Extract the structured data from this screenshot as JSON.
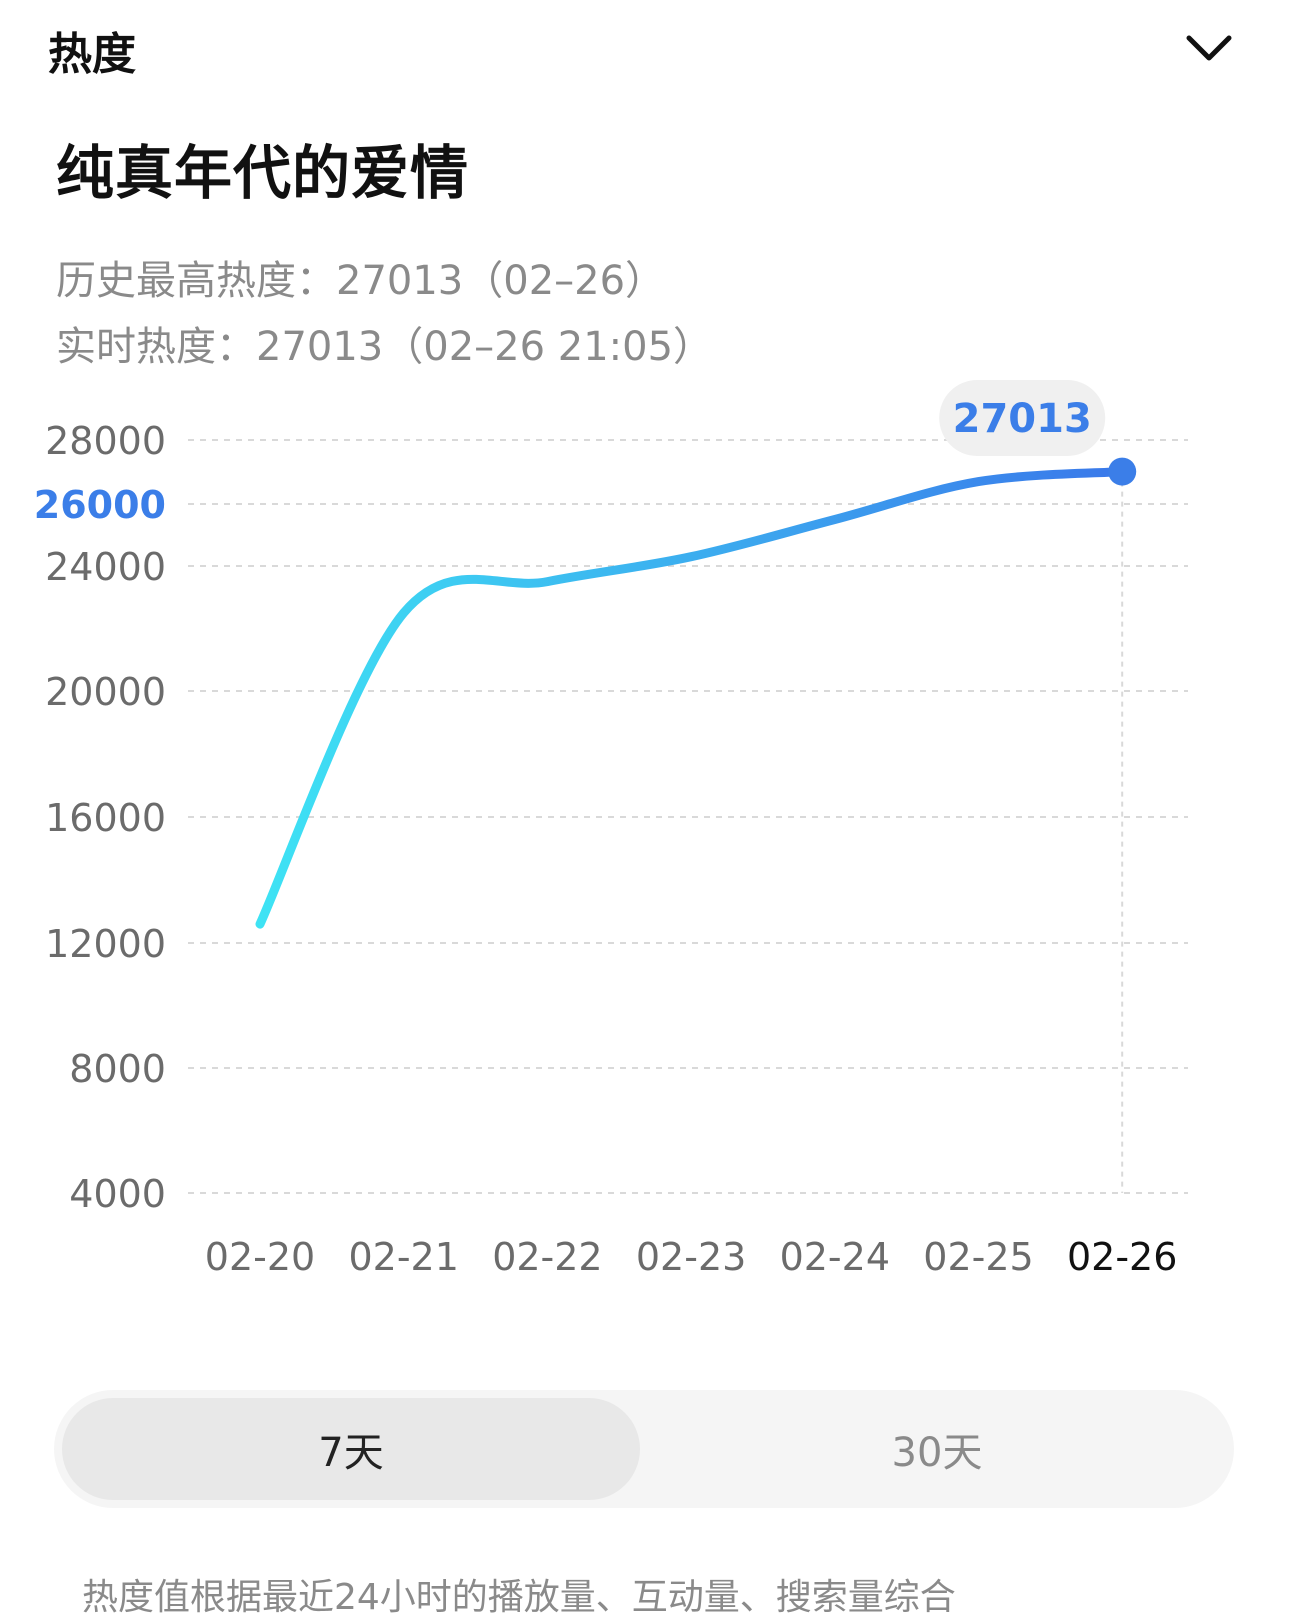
{
  "header": {
    "section_label": "热度"
  },
  "show": {
    "title": "纯真年代的爱情"
  },
  "stats": {
    "history_max": "历史最高热度：27013（02–26）",
    "realtime": "实时热度：27013（02–26 21:05）"
  },
  "colors": {
    "accent": "#3b7ee8",
    "line_start": "#3ee3f4",
    "line_end": "#3a78ea",
    "grid": "#d9d9d9",
    "axis_text": "#6b6b6b"
  },
  "chart_data": {
    "type": "line",
    "categories": [
      "02-20",
      "02-21",
      "02-22",
      "02-23",
      "02-24",
      "02-25",
      "02-26"
    ],
    "series": [
      {
        "values": [
          12600,
          22500,
          23500,
          24300,
          25500,
          26700,
          27013
        ]
      }
    ],
    "y_ticks": [
      4000,
      8000,
      12000,
      16000,
      20000,
      24000,
      26000,
      28000
    ],
    "highlighted_tick": 26000,
    "ylim": [
      4000,
      28000
    ],
    "highlighted_point": {
      "category": "02-26",
      "value": 27013,
      "label": "27013"
    },
    "grid": true,
    "title": "",
    "xlabel": "",
    "ylabel": ""
  },
  "range_selector": {
    "options": [
      {
        "label": "7天",
        "selected": true
      },
      {
        "label": "30天",
        "selected": false
      }
    ]
  },
  "footnote": "热度值根据最近24小时的播放量、互动量、搜索量综合"
}
